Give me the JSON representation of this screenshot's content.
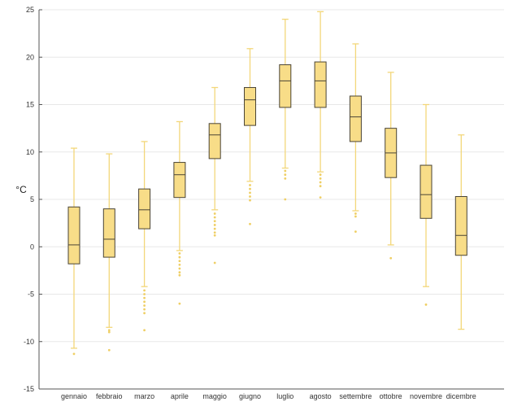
{
  "chart_data": {
    "type": "box",
    "ylabel": "°C",
    "ylim": [
      -15,
      25
    ],
    "yticks": [
      -15,
      -10,
      -5,
      0,
      5,
      10,
      15,
      20,
      25
    ],
    "grid": "horizontal",
    "categories": [
      "gennaio",
      "febbraio",
      "marzo",
      "aprile",
      "maggio",
      "giugno",
      "luglio",
      "agosto",
      "settembre",
      "ottobre",
      "novembre",
      "dicembre"
    ],
    "boxes": [
      {
        "category": "gennaio",
        "whisker_low": -10.7,
        "q1": -1.8,
        "median": 0.2,
        "q3": 4.2,
        "whisker_high": 10.4,
        "outliers": [
          -11.3
        ]
      },
      {
        "category": "febbraio",
        "whisker_low": -8.5,
        "q1": -1.1,
        "median": 0.8,
        "q3": 4.0,
        "whisker_high": 9.8,
        "outliers": [
          -8.8,
          -9.0,
          -10.9
        ]
      },
      {
        "category": "marzo",
        "whisker_low": -4.2,
        "q1": 1.9,
        "median": 3.9,
        "q3": 6.1,
        "whisker_high": 11.1,
        "outliers": [
          -4.6,
          -5.0,
          -5.4,
          -5.8,
          -6.2,
          -6.6,
          -7.0,
          -8.8
        ]
      },
      {
        "category": "aprile",
        "whisker_low": -0.4,
        "q1": 5.2,
        "median": 7.6,
        "q3": 8.9,
        "whisker_high": 13.2,
        "outliers": [
          -0.7,
          -1.1,
          -1.5,
          -1.9,
          -2.3,
          -2.7,
          -3.0,
          -6.0
        ]
      },
      {
        "category": "maggio",
        "whisker_low": 3.9,
        "q1": 9.3,
        "median": 11.8,
        "q3": 13.0,
        "whisker_high": 16.8,
        "outliers": [
          3.5,
          3.1,
          2.7,
          2.3,
          1.9,
          1.5,
          1.2,
          -1.7
        ]
      },
      {
        "category": "giugno",
        "whisker_low": 6.9,
        "q1": 12.8,
        "median": 15.5,
        "q3": 16.8,
        "whisker_high": 20.9,
        "outliers": [
          6.5,
          6.1,
          5.7,
          5.3,
          4.9,
          2.4
        ]
      },
      {
        "category": "luglio",
        "whisker_low": 8.3,
        "q1": 14.7,
        "median": 17.5,
        "q3": 19.2,
        "whisker_high": 24.0,
        "outliers": [
          8.0,
          7.6,
          7.2,
          5.0
        ]
      },
      {
        "category": "agosto",
        "whisker_low": 7.9,
        "q1": 14.7,
        "median": 17.5,
        "q3": 19.5,
        "whisker_high": 24.8,
        "outliers": [
          7.6,
          7.2,
          6.8,
          6.4,
          5.2
        ]
      },
      {
        "category": "settembre",
        "whisker_low": 3.8,
        "q1": 11.1,
        "median": 13.7,
        "q3": 15.9,
        "whisker_high": 21.4,
        "outliers": [
          3.5,
          3.2,
          1.6
        ]
      },
      {
        "category": "ottobre",
        "whisker_low": 0.2,
        "q1": 7.3,
        "median": 9.9,
        "q3": 12.5,
        "whisker_high": 18.4,
        "outliers": [
          -1.2
        ]
      },
      {
        "category": "novembre",
        "whisker_low": -4.2,
        "q1": 3.0,
        "median": 5.5,
        "q3": 8.6,
        "whisker_high": 15.0,
        "outliers": [
          -6.1
        ]
      },
      {
        "category": "dicembre",
        "whisker_low": -8.7,
        "q1": -0.9,
        "median": 1.2,
        "q3": 5.3,
        "whisker_high": 11.8,
        "outliers": []
      }
    ],
    "colors": {
      "box_fill": "#F8DD88",
      "box_edge": "#4A4436",
      "median": "#4A4436",
      "whisker": "#F3D77A",
      "outlier": "#EFCF65",
      "grid": "#E8E8E8",
      "axis": "#555555"
    }
  }
}
